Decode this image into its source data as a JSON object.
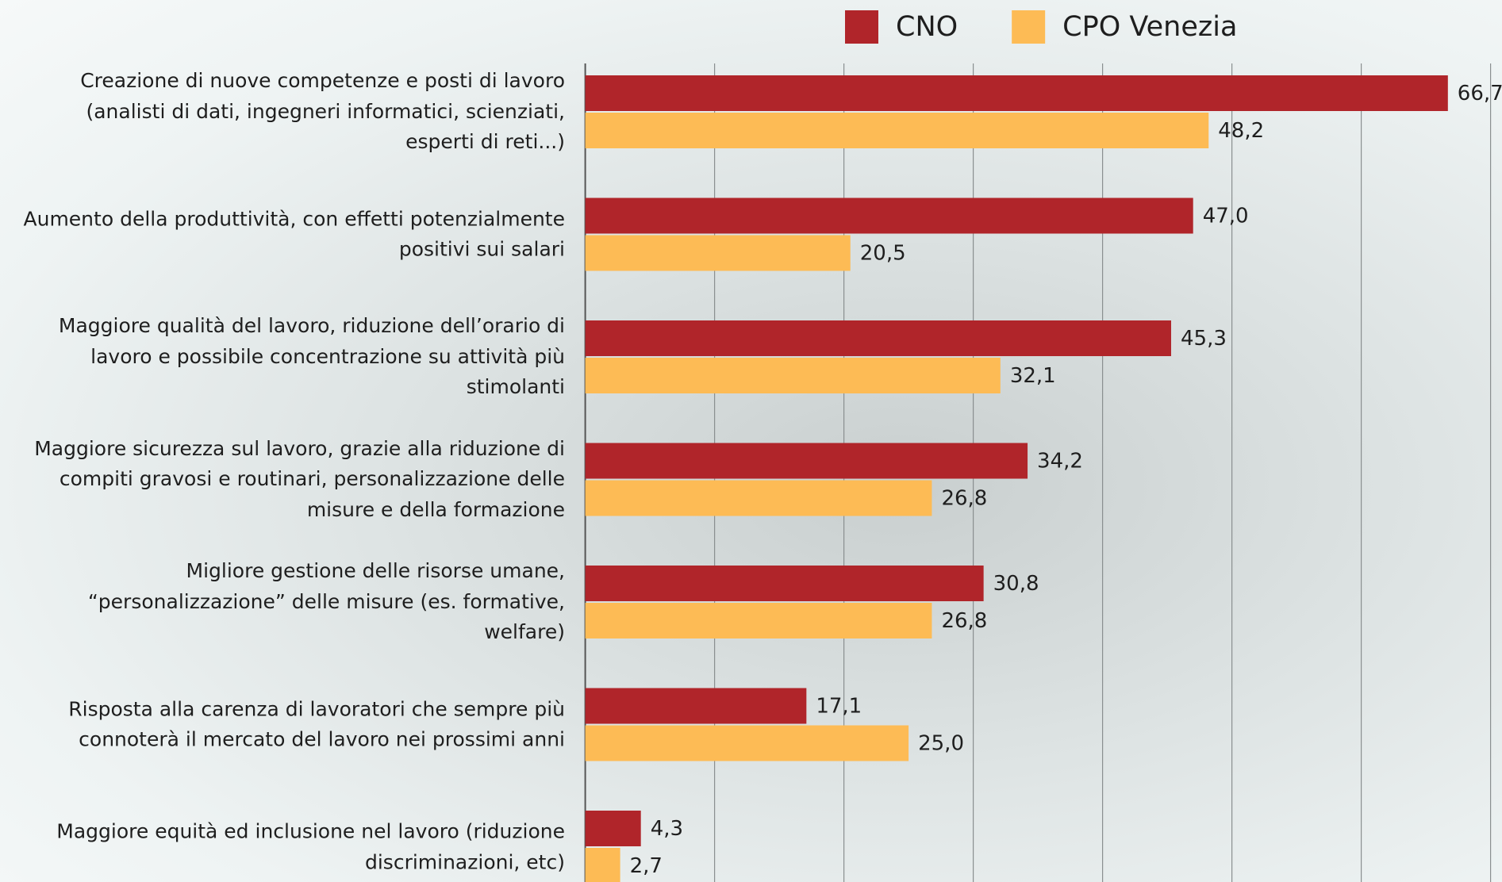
{
  "chart_data": {
    "type": "bar",
    "orientation": "horizontal",
    "categories": [
      "Creazione di nuove competenze e posti di lavoro\n(analisti di dati, ingegneri informatici, scienziati,\nesperti di reti...)",
      "Aumento della produttività, con effetti potenzialmente\npositivi sui salari",
      "Maggiore qualità del lavoro, riduzione dell’orario di\nlavoro e possibile concentrazione su attività più\nstimolanti",
      "Maggiore sicurezza sul lavoro, grazie alla riduzione di\ncompiti gravosi e routinari, personalizzazione delle\nmisure e della formazione",
      "Migliore gestione delle risorse umane,\n“personalizzazione” delle misure (es. formative,\nwelfare)",
      "Risposta alla carenza di lavoratori che sempre più\nconnoterà il mercato del lavoro nei prossimi anni",
      "Maggiore equità ed inclusione nel lavoro (riduzione\ndiscriminazioni, etc)"
    ],
    "series": [
      {
        "name": "CNO",
        "color": "#b0252a",
        "values": [
          66.7,
          47.0,
          45.3,
          34.2,
          30.8,
          17.1,
          4.3
        ],
        "value_labels": [
          "66,7",
          "47,0",
          "45,3",
          "34,2",
          "30,8",
          "17,1",
          "4,3"
        ]
      },
      {
        "name": "CPO Venezia",
        "color": "#fdbb55",
        "values": [
          48.2,
          20.5,
          32.1,
          26.8,
          26.8,
          25.0,
          2.7
        ],
        "value_labels": [
          "48,2",
          "20,5",
          "32,1",
          "26,8",
          "26,8",
          "25,0",
          "2,7"
        ]
      }
    ],
    "xlim": [
      0,
      70
    ],
    "xticks": [
      0,
      10,
      20,
      30,
      40,
      50,
      60,
      70
    ],
    "grid": true
  }
}
